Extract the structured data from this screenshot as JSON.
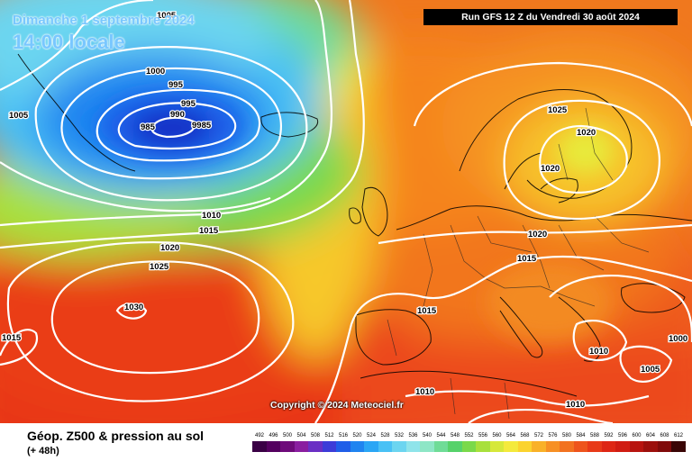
{
  "header": {
    "date_line": "Dimanche 1 septembre 2024",
    "time_line": "14:00 locale",
    "run_banner": "Run GFS 12 Z du Vendredi 30 août 2024"
  },
  "footer": {
    "title": "Géop. Z500 & pression au sol",
    "subtitle": "(+ 48h)",
    "copyright": "Copyright © 2024 Meteociel.fr"
  },
  "legend": {
    "ticks": [
      "492",
      "496",
      "500",
      "504",
      "508",
      "512",
      "516",
      "520",
      "524",
      "528",
      "532",
      "536",
      "540",
      "544",
      "548",
      "552",
      "556",
      "560",
      "564",
      "568",
      "572",
      "576",
      "580",
      "584",
      "588",
      "592",
      "596",
      "600",
      "604",
      "608",
      "612"
    ],
    "colors": [
      "#3a0045",
      "#54005f",
      "#6e0a7a",
      "#8a1ea0",
      "#6a2fc4",
      "#3c3cd8",
      "#1f5ee8",
      "#1f84f0",
      "#2aa6f5",
      "#49c1f5",
      "#6cd5f0",
      "#8fe4ea",
      "#8ee6c6",
      "#6fdc97",
      "#56d26a",
      "#7ad94a",
      "#a8e03c",
      "#d6e83a",
      "#f4ea3c",
      "#fbd32e",
      "#f9b128",
      "#f79024",
      "#f27220",
      "#ee541c",
      "#e83a18",
      "#de2614",
      "#d01c12",
      "#b8140f",
      "#9c0f0c",
      "#800a0a",
      "#3a0505"
    ]
  },
  "isobars": [
    {
      "label": "1005"
    },
    {
      "label": "1000"
    },
    {
      "label": "995"
    },
    {
      "label": "995"
    },
    {
      "label": "990"
    },
    {
      "label": "985"
    },
    {
      "label": "9985"
    },
    {
      "label": "1005"
    },
    {
      "label": "1010"
    },
    {
      "label": "1015"
    },
    {
      "label": "1020"
    },
    {
      "label": "1025"
    },
    {
      "label": "1030"
    },
    {
      "label": "1015"
    },
    {
      "label": "1025"
    },
    {
      "label": "1020"
    },
    {
      "label": "1020"
    },
    {
      "label": "1020"
    },
    {
      "label": "1015"
    },
    {
      "label": "1015"
    },
    {
      "label": "1010"
    },
    {
      "label": "1010"
    },
    {
      "label": "1005"
    },
    {
      "label": "1000"
    },
    {
      "label": "1010"
    }
  ]
}
